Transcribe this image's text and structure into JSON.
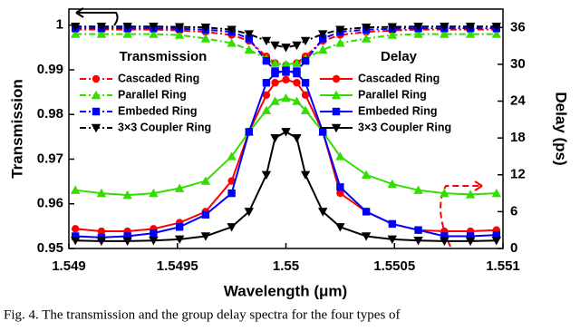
{
  "chart_data": {
    "type": "line",
    "x": [
      1.54903,
      1.54915,
      1.54927,
      1.54939,
      1.54951,
      1.54963,
      1.54975,
      1.54983,
      1.54991,
      1.54995,
      1.55,
      1.55005,
      1.55009,
      1.55017,
      1.55025,
      1.55037,
      1.55049,
      1.55061,
      1.55073,
      1.55085,
      1.55097
    ],
    "xlabel": "Wavelength (μm)",
    "ylabel": "Transmission",
    "y2label": "Delay (ps)",
    "xlim": [
      1.549,
      1.551
    ],
    "xticks": [
      1.549,
      1.5495,
      1.55,
      1.5505,
      1.551
    ],
    "ylim": [
      0.95,
      1.0036
    ],
    "yticks": [
      0.95,
      0.96,
      0.97,
      0.98,
      0.99,
      1
    ],
    "y2lim": [
      0,
      39
    ],
    "y2ticks": [
      0,
      6,
      12,
      18,
      24,
      30,
      36
    ],
    "legend_groups": [
      "Transmission",
      "Delay"
    ],
    "series": [
      {
        "name": "Cascaded Ring",
        "color": "#ff0000",
        "marker": "circle",
        "line_style": "dash-dot",
        "axis": "y",
        "group": 0,
        "values": [
          0.999,
          0.999,
          0.999,
          0.999,
          0.9988,
          0.9985,
          0.9978,
          0.9965,
          0.993,
          0.9915,
          0.991,
          0.9915,
          0.993,
          0.9965,
          0.9978,
          0.9985,
          0.9988,
          0.999,
          0.999,
          0.999,
          0.999
        ]
      },
      {
        "name": "Parallel Ring",
        "color": "#33dd00",
        "marker": "triangle",
        "line_style": "dash-dot",
        "axis": "y",
        "group": 0,
        "values": [
          0.998,
          0.998,
          0.998,
          0.998,
          0.9978,
          0.997,
          0.996,
          0.9945,
          0.9925,
          0.9915,
          0.9912,
          0.9915,
          0.9925,
          0.9945,
          0.996,
          0.997,
          0.9978,
          0.998,
          0.998,
          0.998,
          0.998
        ]
      },
      {
        "name": "Embeded Ring",
        "color": "#0000ff",
        "marker": "square",
        "line_style": "dash-dot",
        "axis": "y",
        "group": 0,
        "values": [
          0.9993,
          0.9993,
          0.9993,
          0.9993,
          0.9992,
          0.999,
          0.9985,
          0.997,
          0.992,
          0.9897,
          0.9895,
          0.9897,
          0.992,
          0.997,
          0.9985,
          0.999,
          0.9992,
          0.9993,
          0.9993,
          0.9993,
          0.9993
        ]
      },
      {
        "name": "3×3 Coupler Ring",
        "color": "#000000",
        "marker": "triangle-down",
        "line_style": "dash-dot",
        "axis": "y",
        "group": 0,
        "values": [
          0.9997,
          0.9997,
          0.9997,
          0.9997,
          0.9996,
          0.9995,
          0.999,
          0.998,
          0.9965,
          0.9955,
          0.995,
          0.9955,
          0.9965,
          0.998,
          0.999,
          0.9995,
          0.9996,
          0.9997,
          0.9997,
          0.9997,
          0.9997
        ]
      },
      {
        "name": "Cascaded Ring",
        "color": "#ff0000",
        "marker": "circle",
        "line_style": "solid",
        "axis": "y2",
        "group": 1,
        "values": [
          3.2,
          2.8,
          2.8,
          3.2,
          4.2,
          6,
          11,
          19,
          25,
          27,
          27.5,
          27,
          25,
          19,
          9,
          6,
          4,
          3,
          2.8,
          2.8,
          3
        ]
      },
      {
        "name": "Parallel Ring",
        "color": "#33dd00",
        "marker": "triangle",
        "line_style": "solid",
        "axis": "y2",
        "group": 1,
        "values": [
          9.5,
          9,
          8.7,
          9,
          9.8,
          11,
          15,
          19,
          22.5,
          24,
          24.5,
          24,
          22.5,
          19,
          15,
          12,
          10.5,
          9.5,
          9,
          8.8,
          9
        ]
      },
      {
        "name": "Embeded Ring",
        "color": "#0000ff",
        "marker": "square",
        "line_style": "solid",
        "axis": "y2",
        "group": 1,
        "values": [
          2,
          1.8,
          2,
          2.5,
          3.5,
          5.5,
          9,
          19,
          27,
          28.5,
          29,
          28.5,
          27,
          19,
          10,
          6,
          4,
          3,
          2,
          2,
          2.2
        ]
      },
      {
        "name": "3×3 Coupler Ring",
        "color": "#000000",
        "marker": "triangle-down",
        "line_style": "solid",
        "axis": "y2",
        "group": 1,
        "values": [
          1.3,
          1.2,
          1.2,
          1.3,
          1.5,
          2,
          3.5,
          6,
          12,
          18,
          19,
          18,
          12,
          6,
          3.5,
          2,
          1.5,
          1.3,
          1.2,
          1.2,
          1.3
        ]
      }
    ]
  },
  "caption": "Fig. 4.  The transmission and the group delay spectra for the four types of"
}
